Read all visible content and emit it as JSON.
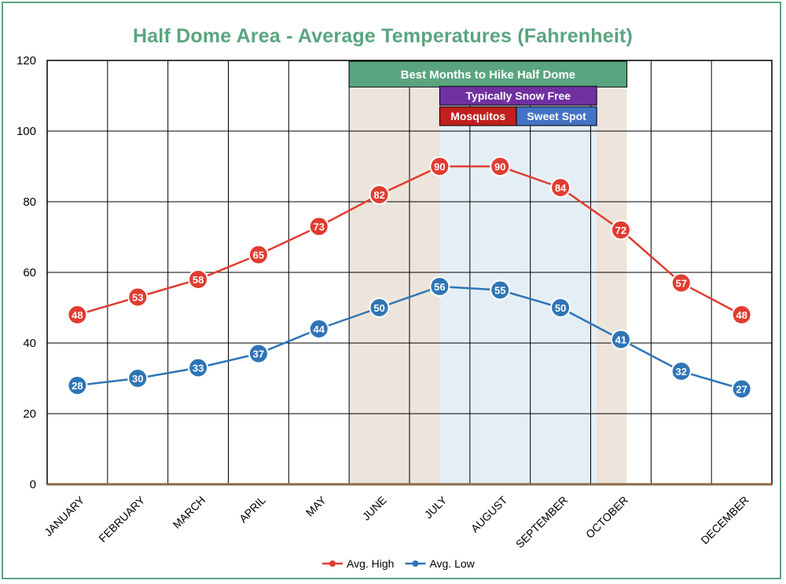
{
  "title": "Half Dome Area - Average Temperatures (Fahrenheit)",
  "chart_data": {
    "type": "line",
    "title": "Half Dome Area - Average Temperatures (Fahrenheit)",
    "xlabel": "",
    "ylabel": "",
    "ylim": [
      0,
      120
    ],
    "yticks": [
      0,
      20,
      40,
      60,
      80,
      100,
      120
    ],
    "grid": true,
    "legend_position": "bottom",
    "categories": [
      "JANUARY",
      "FEBRUARY",
      "MARCH",
      "APRIL",
      "MAY",
      "JUNE",
      "JULY",
      "AUGUST",
      "SEPTEMBER",
      "OCTOBER",
      "",
      "DECEMBER"
    ],
    "series": [
      {
        "name": "Avg. High",
        "color": "#e03c31",
        "values": [
          48,
          53,
          58,
          65,
          73,
          82,
          90,
          90,
          84,
          72,
          57,
          48
        ]
      },
      {
        "name": "Avg. Low",
        "color": "#2e75b6",
        "values": [
          28,
          30,
          33,
          37,
          44,
          50,
          56,
          55,
          50,
          41,
          32,
          27
        ]
      }
    ],
    "annotations": [
      {
        "label": "Best Months to Hike Half Dome",
        "span": "June - October",
        "color": "#5aa57f"
      },
      {
        "label": "Typically Snow Free",
        "span": "mid July - September",
        "color": "#7030a0"
      },
      {
        "label": "Mosquitos",
        "span": "mid July - mid August",
        "color": "#c0201f"
      },
      {
        "label": "Sweet Spot",
        "span": "mid August - September",
        "color": "#4472c4"
      }
    ],
    "shading": [
      {
        "name": "best-months",
        "color": "#ede5dc"
      },
      {
        "name": "snow-free",
        "color": "#e4eff5"
      }
    ]
  }
}
